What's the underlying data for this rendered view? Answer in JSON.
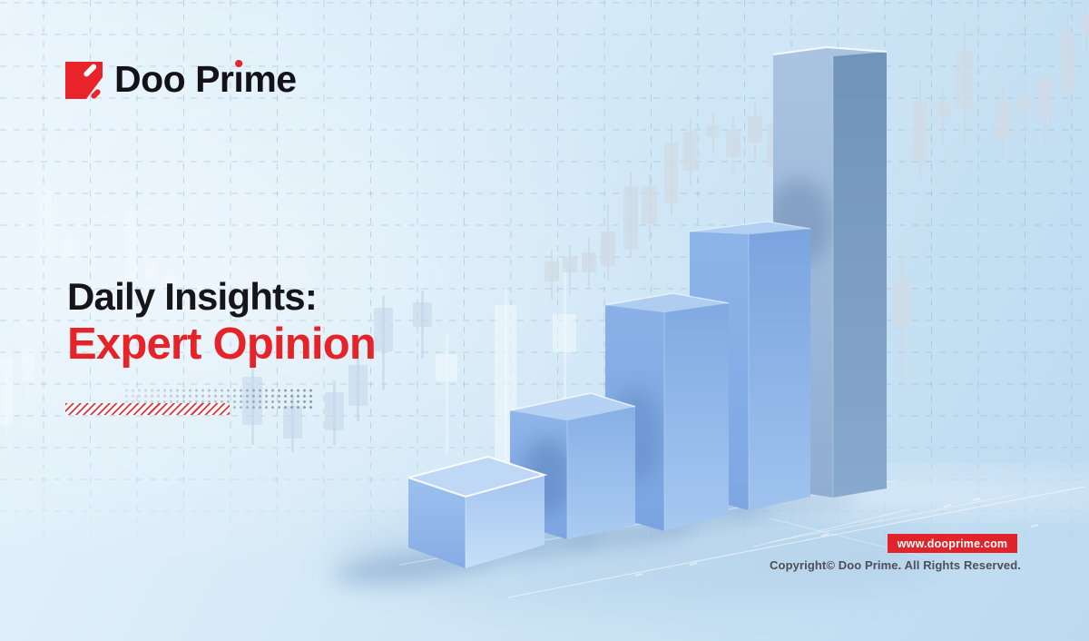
{
  "brand": {
    "name": "Doo Prime",
    "wordmark_pre": "Doo Pr",
    "wordmark_i": "ı",
    "wordmark_post": "me",
    "logo_red": "#e8232a"
  },
  "headline": {
    "line1": "Daily Insights:",
    "line2": "Expert Opinion",
    "line1_color": "#15151a",
    "line2_color": "#e62329"
  },
  "footer": {
    "website_label": "www.dooprime.com",
    "website_banner_color": "#e1232a",
    "copyright": "Copyright© Doo Prime. All Rights Reserved."
  },
  "illustration": {
    "type": "3d-bar-chart",
    "bars_count": 5,
    "trend": "ascending",
    "bar_color": "#8fb6ea",
    "background_motif": "candlestick-chart-with-dashed-grid",
    "background_tint": "#cde5f5"
  }
}
